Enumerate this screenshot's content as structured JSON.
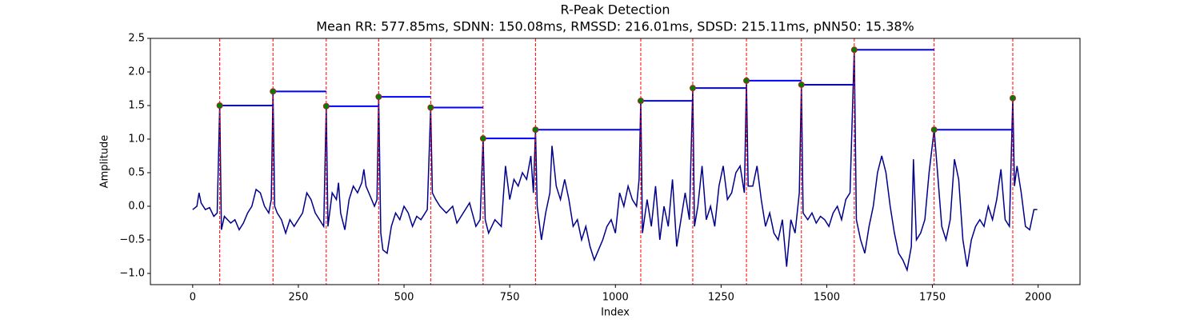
{
  "chart_data": {
    "type": "line",
    "title": "R-Peak Detection",
    "subtitle": "Mean RR: 577.85ms, SDNN: 150.08ms, RMSSD: 216.01ms, SDSD: 215.11ms, pNN50: 15.38%",
    "x_label": "Index",
    "y_label": "Amplitude",
    "xlim": [
      -100,
      2099
    ],
    "ylim": [
      -1.167,
      2.5
    ],
    "xticks": [
      0,
      250,
      500,
      750,
      1000,
      1250,
      1500,
      1750,
      2000
    ],
    "yticks": [
      {
        "value": -1,
        "label": "−1.0"
      },
      {
        "value": -0.5,
        "label": "−0.5"
      },
      {
        "value": 0,
        "label": "0.0"
      },
      0.5,
      {
        "value": 1,
        "label": "1.0"
      },
      1.5,
      {
        "value": 2,
        "label": "2.0"
      },
      2.5
    ],
    "series": [
      {
        "color": "#00008b",
        "x": [
          0,
          10,
          15,
          20,
          30,
          40,
          50,
          58,
          64,
          68,
          75,
          90,
          100,
          110,
          120,
          130,
          140,
          150,
          160,
          170,
          180,
          186,
          190,
          194,
          200,
          210,
          220,
          230,
          240,
          250,
          260,
          270,
          280,
          290,
          300,
          310,
          316,
          320,
          330,
          340,
          345,
          350,
          360,
          370,
          380,
          390,
          400,
          405,
          410,
          420,
          430,
          436,
          440,
          445,
          450,
          460,
          470,
          480,
          490,
          500,
          510,
          520,
          530,
          540,
          555,
          563,
          567,
          575,
          585,
          600,
          615,
          625,
          640,
          655,
          670,
          680,
          687,
          692,
          700,
          715,
          730,
          740,
          750,
          760,
          770,
          780,
          790,
          800,
          806,
          811,
          815,
          825,
          835,
          845,
          850,
          860,
          870,
          880,
          890,
          900,
          910,
          920,
          930,
          940,
          950,
          960,
          970,
          980,
          990,
          1000,
          1010,
          1020,
          1030,
          1040,
          1050,
          1056,
          1060,
          1064,
          1075,
          1085,
          1095,
          1105,
          1115,
          1125,
          1135,
          1145,
          1155,
          1165,
          1175,
          1183,
          1187,
          1195,
          1205,
          1215,
          1225,
          1235,
          1245,
          1255,
          1265,
          1275,
          1285,
          1295,
          1305,
          1310,
          1314,
          1325,
          1335,
          1345,
          1355,
          1365,
          1375,
          1385,
          1395,
          1405,
          1415,
          1425,
          1435,
          1440,
          1444,
          1455,
          1465,
          1475,
          1485,
          1495,
          1505,
          1515,
          1525,
          1535,
          1545,
          1555,
          1565,
          1570,
          1580,
          1590,
          1600,
          1610,
          1620,
          1630,
          1640,
          1650,
          1660,
          1670,
          1680,
          1690,
          1700,
          1705,
          1712,
          1722,
          1732,
          1742,
          1754,
          1762,
          1772,
          1782,
          1792,
          1802,
          1812,
          1822,
          1832,
          1842,
          1852,
          1862,
          1872,
          1882,
          1892,
          1902,
          1912,
          1922,
          1932,
          1940,
          1944,
          1950,
          1960,
          1970,
          1980,
          1990,
          1998
        ],
        "values": [
          -0.05,
          0.0,
          0.2,
          0.05,
          -0.05,
          -0.02,
          -0.15,
          -0.1,
          1.5,
          -0.35,
          -0.15,
          -0.25,
          -0.2,
          -0.35,
          -0.25,
          -0.1,
          0.0,
          0.25,
          0.2,
          0.0,
          -0.1,
          0.1,
          1.71,
          0.0,
          -0.1,
          -0.2,
          -0.4,
          -0.2,
          -0.3,
          -0.2,
          -0.1,
          0.2,
          0.1,
          -0.1,
          -0.2,
          -0.3,
          1.49,
          -0.3,
          0.2,
          0.1,
          0.35,
          -0.1,
          -0.35,
          0.1,
          0.3,
          0.2,
          0.35,
          0.55,
          0.3,
          0.15,
          0.0,
          0.1,
          1.63,
          -0.4,
          -0.65,
          -0.7,
          -0.3,
          -0.1,
          -0.2,
          0.0,
          -0.1,
          -0.3,
          -0.15,
          -0.2,
          -0.05,
          1.47,
          0.2,
          0.1,
          0.0,
          -0.1,
          0.0,
          -0.25,
          -0.1,
          0.05,
          -0.3,
          -0.2,
          1.01,
          -0.2,
          -0.4,
          -0.2,
          -0.3,
          0.6,
          0.1,
          0.4,
          0.3,
          0.5,
          0.4,
          0.75,
          0.2,
          1.14,
          0.0,
          -0.5,
          -0.1,
          0.2,
          0.9,
          0.3,
          0.1,
          0.4,
          0.1,
          -0.3,
          -0.2,
          -0.5,
          -0.3,
          -0.6,
          -0.8,
          -0.65,
          -0.5,
          -0.3,
          -0.2,
          -0.4,
          0.2,
          0.0,
          0.3,
          0.1,
          0.0,
          0.4,
          1.57,
          -0.4,
          0.1,
          -0.3,
          0.3,
          -0.5,
          0.0,
          -0.3,
          0.4,
          -0.6,
          -0.2,
          0.2,
          -0.2,
          1.76,
          -0.3,
          0.0,
          0.6,
          -0.2,
          0.0,
          -0.3,
          0.3,
          0.6,
          0.1,
          0.2,
          0.5,
          0.6,
          0.2,
          1.87,
          0.3,
          0.3,
          0.6,
          0.1,
          -0.3,
          -0.1,
          -0.4,
          -0.5,
          -0.2,
          -0.9,
          -0.2,
          -0.4,
          0.2,
          1.81,
          -0.1,
          -0.2,
          -0.1,
          -0.25,
          -0.15,
          -0.2,
          -0.3,
          -0.1,
          0.0,
          -0.2,
          0.1,
          0.2,
          2.33,
          -0.2,
          -0.5,
          -0.7,
          -0.3,
          0.0,
          0.5,
          0.75,
          0.5,
          0.0,
          -0.4,
          -0.7,
          -0.8,
          -0.95,
          -0.6,
          0.7,
          -0.5,
          -0.4,
          -0.2,
          0.5,
          1.14,
          0.5,
          -0.3,
          -0.5,
          -0.2,
          0.7,
          0.4,
          -0.5,
          -0.9,
          -0.5,
          -0.3,
          -0.2,
          -0.3,
          0.0,
          -0.2,
          0.1,
          0.55,
          -0.2,
          -0.3,
          1.61,
          0.3,
          0.6,
          0.2,
          -0.3,
          -0.35,
          -0.05,
          -0.05
        ]
      }
    ],
    "peaks": {
      "color": "green",
      "edgecolor": "#b22222",
      "x": [
        64,
        190,
        316,
        440,
        563,
        687,
        811,
        1060,
        1183,
        1310,
        1440,
        1565,
        1754,
        1940
      ],
      "values": [
        1.5,
        1.71,
        1.49,
        1.63,
        1.47,
        1.01,
        1.14,
        1.57,
        1.76,
        1.87,
        1.81,
        2.33,
        1.14,
        1.61
      ]
    },
    "peak_line_color": "red",
    "rr_line_color": "blue"
  }
}
